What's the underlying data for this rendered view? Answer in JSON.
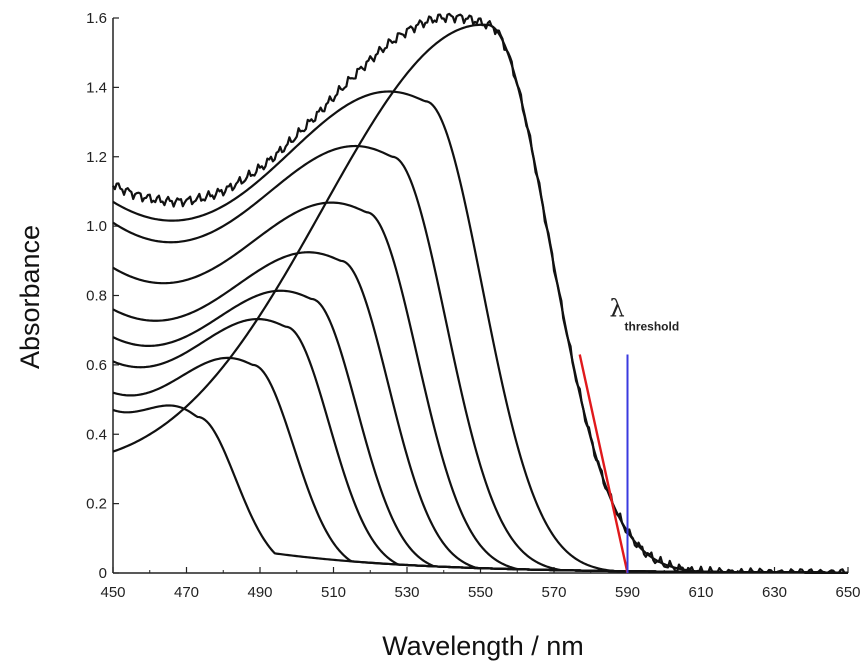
{
  "chart_data": {
    "type": "line",
    "xlabel": "Wavelength / nm",
    "ylabel": "Absorbance",
    "xlim": [
      450,
      650
    ],
    "ylim": [
      0,
      1.6
    ],
    "xticks": [
      "450",
      "470",
      "490",
      "510",
      "530",
      "550",
      "570",
      "590",
      "610",
      "630",
      "650"
    ],
    "yticks": [
      "0",
      "0.2",
      "0.4",
      "0.6",
      "0.8",
      "1.0",
      "1.2",
      "1.4",
      "1.6"
    ],
    "grid": false,
    "legend": "none",
    "line_color": "#111111",
    "series": [
      {
        "start": 0.47,
        "peak_x": 473,
        "peak_y": 0.45,
        "tail": 0.0,
        "noise": 0.0
      },
      {
        "start": 0.52,
        "peak_x": 488,
        "peak_y": 0.6,
        "tail": 0.0,
        "noise": 0.0
      },
      {
        "start": 0.61,
        "peak_x": 497,
        "peak_y": 0.71,
        "tail": 0.0,
        "noise": 0.0
      },
      {
        "start": 0.68,
        "peak_x": 504,
        "peak_y": 0.79,
        "tail": 0.0,
        "noise": 0.0
      },
      {
        "start": 0.76,
        "peak_x": 512,
        "peak_y": 0.9,
        "tail": 0.0,
        "noise": 0.0
      },
      {
        "start": 0.88,
        "peak_x": 519,
        "peak_y": 1.04,
        "tail": 0.0,
        "noise": 0.0
      },
      {
        "start": 1.01,
        "peak_x": 526,
        "peak_y": 1.2,
        "tail": 0.0,
        "noise": 0.0
      },
      {
        "start": 1.07,
        "peak_x": 535,
        "peak_y": 1.36,
        "tail": 0.0,
        "noise": 0.0
      },
      {
        "start": 1.12,
        "peak_x": 552,
        "peak_y": 1.58,
        "tail": 0.0,
        "noise": 0.01
      },
      {
        "start": 0.35,
        "peak_x": 552,
        "peak_y": 1.58,
        "tail": 0.0,
        "noise": 0.0
      }
    ],
    "threshold_fit_line": {
      "x": [
        577,
        590
      ],
      "y": [
        0.63,
        0.0
      ],
      "color": "#e0191c"
    },
    "threshold_marker": {
      "x": 590,
      "y_top": 0.63,
      "color": "#3a3adf"
    },
    "annotation": {
      "symbol": "λ",
      "subscript": "threshold",
      "x": 590,
      "y": 0.74
    }
  }
}
